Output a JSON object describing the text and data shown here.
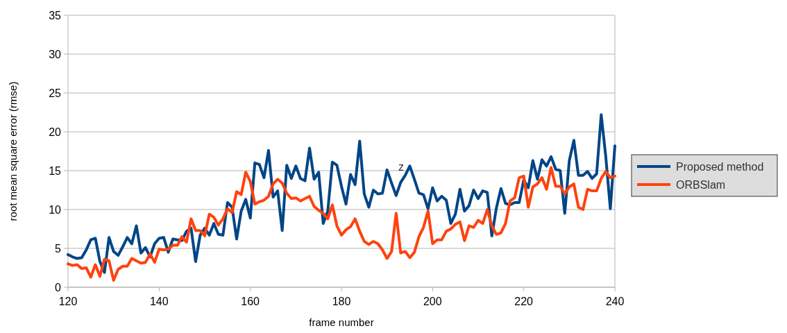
{
  "chart_data": {
    "type": "line",
    "xlabel": "frame number",
    "ylabel": "root mean square error (rmse)",
    "x": [
      120,
      121,
      122,
      123,
      124,
      125,
      126,
      127,
      128,
      129,
      130,
      131,
      132,
      133,
      134,
      135,
      136,
      137,
      138,
      139,
      140,
      141,
      142,
      143,
      144,
      145,
      146,
      147,
      148,
      149,
      150,
      151,
      152,
      153,
      154,
      155,
      156,
      157,
      158,
      159,
      160,
      161,
      162,
      163,
      164,
      165,
      166,
      167,
      168,
      169,
      170,
      171,
      172,
      173,
      174,
      175,
      176,
      177,
      178,
      179,
      180,
      181,
      182,
      183,
      184,
      185,
      186,
      187,
      188,
      189,
      190,
      191,
      192,
      193,
      194,
      195,
      196,
      197,
      198,
      199,
      200,
      201,
      202,
      203,
      204,
      205,
      206,
      207,
      208,
      209,
      210,
      211,
      212,
      213,
      214,
      215,
      216,
      217,
      218,
      219,
      220,
      221,
      222,
      223,
      224,
      225,
      226,
      227,
      228,
      229,
      230,
      231,
      232,
      233,
      234,
      235,
      236,
      237,
      238,
      239,
      240
    ],
    "series": [
      {
        "name": "Proposed method",
        "color": "#004586",
        "values": [
          4.2,
          3.9,
          3.7,
          3.8,
          4.8,
          6.1,
          6.3,
          3.3,
          1.9,
          6.4,
          4.6,
          4.1,
          5.2,
          6.4,
          5.6,
          7.9,
          4.4,
          5.1,
          3.9,
          5.6,
          6.3,
          6.4,
          4.5,
          6.2,
          6.1,
          6.0,
          7.2,
          7.6,
          3.3,
          6.7,
          7.6,
          6.7,
          8.2,
          6.8,
          6.7,
          10.9,
          10.3,
          6.2,
          9.8,
          11.3,
          8.9,
          16.0,
          15.8,
          14.1,
          17.6,
          11.6,
          12.4,
          7.3,
          15.7,
          14.0,
          15.6,
          14.0,
          13.7,
          17.9,
          13.9,
          14.8,
          8.2,
          9.8,
          16.1,
          15.7,
          13.0,
          10.7,
          14.5,
          13.2,
          18.8,
          12.0,
          10.3,
          12.5,
          12.0,
          12.1,
          15.1,
          13.4,
          11.8,
          13.5,
          14.4,
          15.6,
          13.9,
          12.1,
          11.9,
          10.1,
          12.8,
          11.1,
          11.7,
          11.2,
          8.2,
          9.4,
          12.6,
          9.8,
          10.5,
          12.5,
          11.4,
          12.4,
          12.2,
          6.6,
          10.2,
          12.7,
          10.8,
          10.6,
          10.9,
          10.9,
          13.8,
          12.8,
          16.3,
          13.9,
          16.4,
          15.6,
          16.8,
          15.2,
          15.0,
          9.5,
          16.3,
          18.9,
          14.4,
          14.4,
          14.9,
          14.0,
          14.6,
          22.2,
          16.8,
          10.1,
          18.2
        ]
      },
      {
        "name": "ORBSlam",
        "color": "#ff420e",
        "values": [
          3.0,
          2.8,
          2.9,
          2.4,
          2.5,
          1.3,
          2.9,
          1.4,
          3.6,
          3.4,
          0.9,
          2.3,
          2.7,
          2.7,
          3.7,
          3.4,
          3.1,
          3.2,
          4.3,
          3.2,
          4.9,
          4.8,
          4.9,
          5.4,
          5.4,
          6.5,
          5.8,
          8.8,
          7.3,
          7.3,
          6.6,
          9.4,
          9.0,
          8.0,
          8.8,
          10.1,
          9.6,
          12.3,
          11.9,
          14.8,
          13.6,
          10.7,
          11.0,
          11.2,
          11.7,
          13.3,
          13.9,
          13.4,
          12.1,
          11.4,
          11.5,
          11.1,
          11.4,
          11.7,
          10.4,
          9.9,
          9.5,
          8.8,
          10.6,
          7.9,
          6.7,
          7.4,
          7.8,
          8.8,
          7.2,
          5.9,
          5.5,
          5.9,
          5.6,
          4.8,
          3.7,
          4.6,
          9.5,
          4.4,
          4.6,
          3.8,
          4.5,
          6.5,
          7.7,
          9.8,
          5.6,
          6.1,
          6.1,
          7.2,
          7.5,
          8.1,
          8.4,
          6.0,
          7.9,
          7.7,
          8.6,
          8.2,
          10.0,
          7.9,
          6.8,
          7.0,
          8.2,
          11.1,
          11.5,
          14.1,
          14.3,
          10.3,
          12.9,
          13.3,
          14.1,
          12.6,
          15.4,
          13.0,
          13.0,
          12.0,
          12.9,
          13.3,
          10.3,
          10.0,
          12.6,
          12.4,
          12.4,
          14.0,
          14.9,
          14.1,
          14.3
        ]
      }
    ],
    "xlim": [
      120,
      240
    ],
    "xticks": [
      120,
      140,
      160,
      180,
      200,
      220,
      240
    ],
    "ylim": [
      0,
      35
    ],
    "yticks": [
      0,
      5,
      10,
      15,
      20,
      25,
      30,
      35
    ],
    "grid": "y",
    "legend": "right",
    "line_style": "solid",
    "marker": "none",
    "annotations": [
      "z"
    ]
  }
}
